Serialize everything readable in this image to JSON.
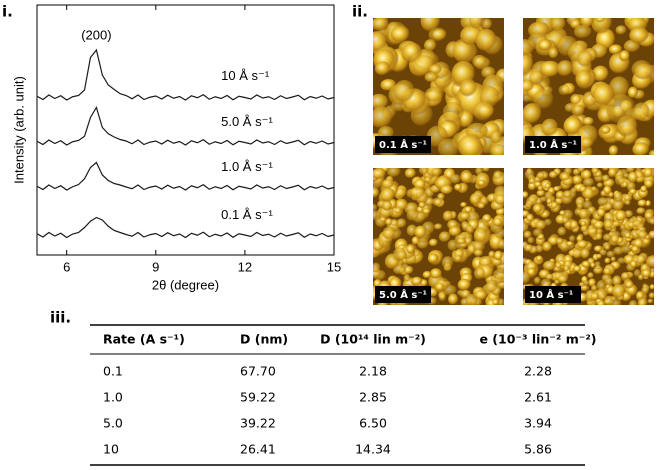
{
  "panel_labels": [
    "i.",
    "ii.",
    "iii."
  ],
  "chart_data": {
    "type": "line",
    "x_label": "2θ (degree)",
    "y_label": "Intensity (arb. unit)",
    "annotation": "(200)",
    "x": [
      5.0,
      5.2,
      5.4,
      5.6,
      5.8,
      6.0,
      6.2,
      6.4,
      6.6,
      6.8,
      7.0,
      7.2,
      7.4,
      7.6,
      7.8,
      8.0,
      8.2,
      8.4,
      8.6,
      8.8,
      9.0,
      9.2,
      9.4,
      9.6,
      9.8,
      10.0,
      10.2,
      10.4,
      10.6,
      10.8,
      11.0,
      11.2,
      11.4,
      11.6,
      11.8,
      12.0,
      12.2,
      12.4,
      12.6,
      12.8,
      13.0,
      13.2,
      13.4,
      13.6,
      13.8,
      14.0,
      14.2,
      14.4,
      14.6,
      14.8,
      15.0
    ],
    "xlim": [
      5,
      15
    ],
    "xticks": [
      6,
      9,
      12,
      15
    ],
    "ylim": [
      0,
      10
    ],
    "series": [
      {
        "name": "0.1 Å s⁻¹",
        "color": "#1a1a1a",
        "values": [
          0.85,
          0.72,
          0.9,
          0.76,
          0.87,
          0.7,
          0.84,
          0.9,
          1.1,
          1.35,
          1.5,
          1.4,
          1.15,
          0.98,
          0.9,
          0.82,
          0.75,
          0.9,
          0.72,
          0.81,
          0.86,
          0.74,
          0.89,
          0.77,
          0.84,
          0.7,
          0.87,
          0.79,
          0.91,
          0.73,
          0.83,
          0.76,
          0.88,
          0.71,
          0.85,
          0.8,
          0.74,
          0.9,
          0.78,
          0.83,
          0.72,
          0.87,
          0.76,
          0.82,
          0.89,
          0.71,
          0.84,
          0.77,
          0.86,
          0.74,
          0.8
        ]
      },
      {
        "name": "1.0 Å s⁻¹",
        "color": "#1a1a1a",
        "values": [
          2.75,
          2.62,
          2.8,
          2.66,
          2.77,
          2.6,
          2.73,
          2.82,
          3.05,
          3.5,
          3.7,
          3.2,
          2.98,
          2.86,
          2.8,
          2.72,
          2.65,
          2.8,
          2.62,
          2.71,
          2.76,
          2.64,
          2.79,
          2.67,
          2.74,
          2.6,
          2.77,
          2.69,
          2.81,
          2.63,
          2.73,
          2.66,
          2.78,
          2.61,
          2.75,
          2.7,
          2.64,
          2.8,
          2.68,
          2.73,
          2.62,
          2.77,
          2.66,
          2.72,
          2.79,
          2.61,
          2.74,
          2.67,
          2.76,
          2.64,
          2.7
        ]
      },
      {
        "name": "5.0 Å s⁻¹",
        "color": "#1a1a1a",
        "values": [
          4.55,
          4.42,
          4.6,
          4.46,
          4.57,
          4.4,
          4.53,
          4.58,
          4.75,
          5.5,
          5.9,
          5.1,
          4.85,
          4.72,
          4.62,
          4.56,
          4.45,
          4.6,
          4.42,
          4.51,
          4.56,
          4.44,
          4.59,
          4.47,
          4.54,
          4.4,
          4.57,
          4.49,
          4.61,
          4.43,
          4.53,
          4.46,
          4.58,
          4.41,
          4.55,
          4.5,
          4.44,
          4.6,
          4.48,
          4.53,
          4.42,
          4.57,
          4.46,
          4.52,
          4.59,
          4.41,
          4.54,
          4.47,
          4.56,
          4.44,
          4.5
        ]
      },
      {
        "name": "10 Å s⁻¹",
        "color": "#1a1a1a",
        "values": [
          6.35,
          6.22,
          6.4,
          6.26,
          6.37,
          6.2,
          6.33,
          6.38,
          6.6,
          7.9,
          8.2,
          7.2,
          6.8,
          6.62,
          6.45,
          6.38,
          6.25,
          6.4,
          6.22,
          6.31,
          6.36,
          6.24,
          6.39,
          6.27,
          6.34,
          6.2,
          6.37,
          6.29,
          6.41,
          6.23,
          6.33,
          6.26,
          6.38,
          6.21,
          6.35,
          6.3,
          6.24,
          6.4,
          6.28,
          6.33,
          6.22,
          6.37,
          6.26,
          6.32,
          6.39,
          6.21,
          6.34,
          6.27,
          6.36,
          6.24,
          6.3
        ]
      }
    ]
  },
  "afm_images": [
    {
      "label": "0.1 Å s⁻¹"
    },
    {
      "label": "1.0 Å s⁻¹"
    },
    {
      "label": "5.0 Å s⁻¹"
    },
    {
      "label": "10 Å s⁻¹"
    }
  ],
  "table": {
    "header": [
      "Rate (A s⁻¹)",
      "D (nm)",
      "D (10¹⁴ lin m⁻²)",
      "e (10⁻³ lin⁻² m⁻²)"
    ],
    "rows": [
      [
        "0.1",
        "67.70",
        "2.18",
        "2.28"
      ],
      [
        "1.0",
        "59.22",
        "2.85",
        "2.61"
      ],
      [
        "5.0",
        "39.22",
        "6.50",
        "3.94"
      ],
      [
        "10",
        "26.41",
        "14.34",
        "5.86"
      ]
    ]
  }
}
